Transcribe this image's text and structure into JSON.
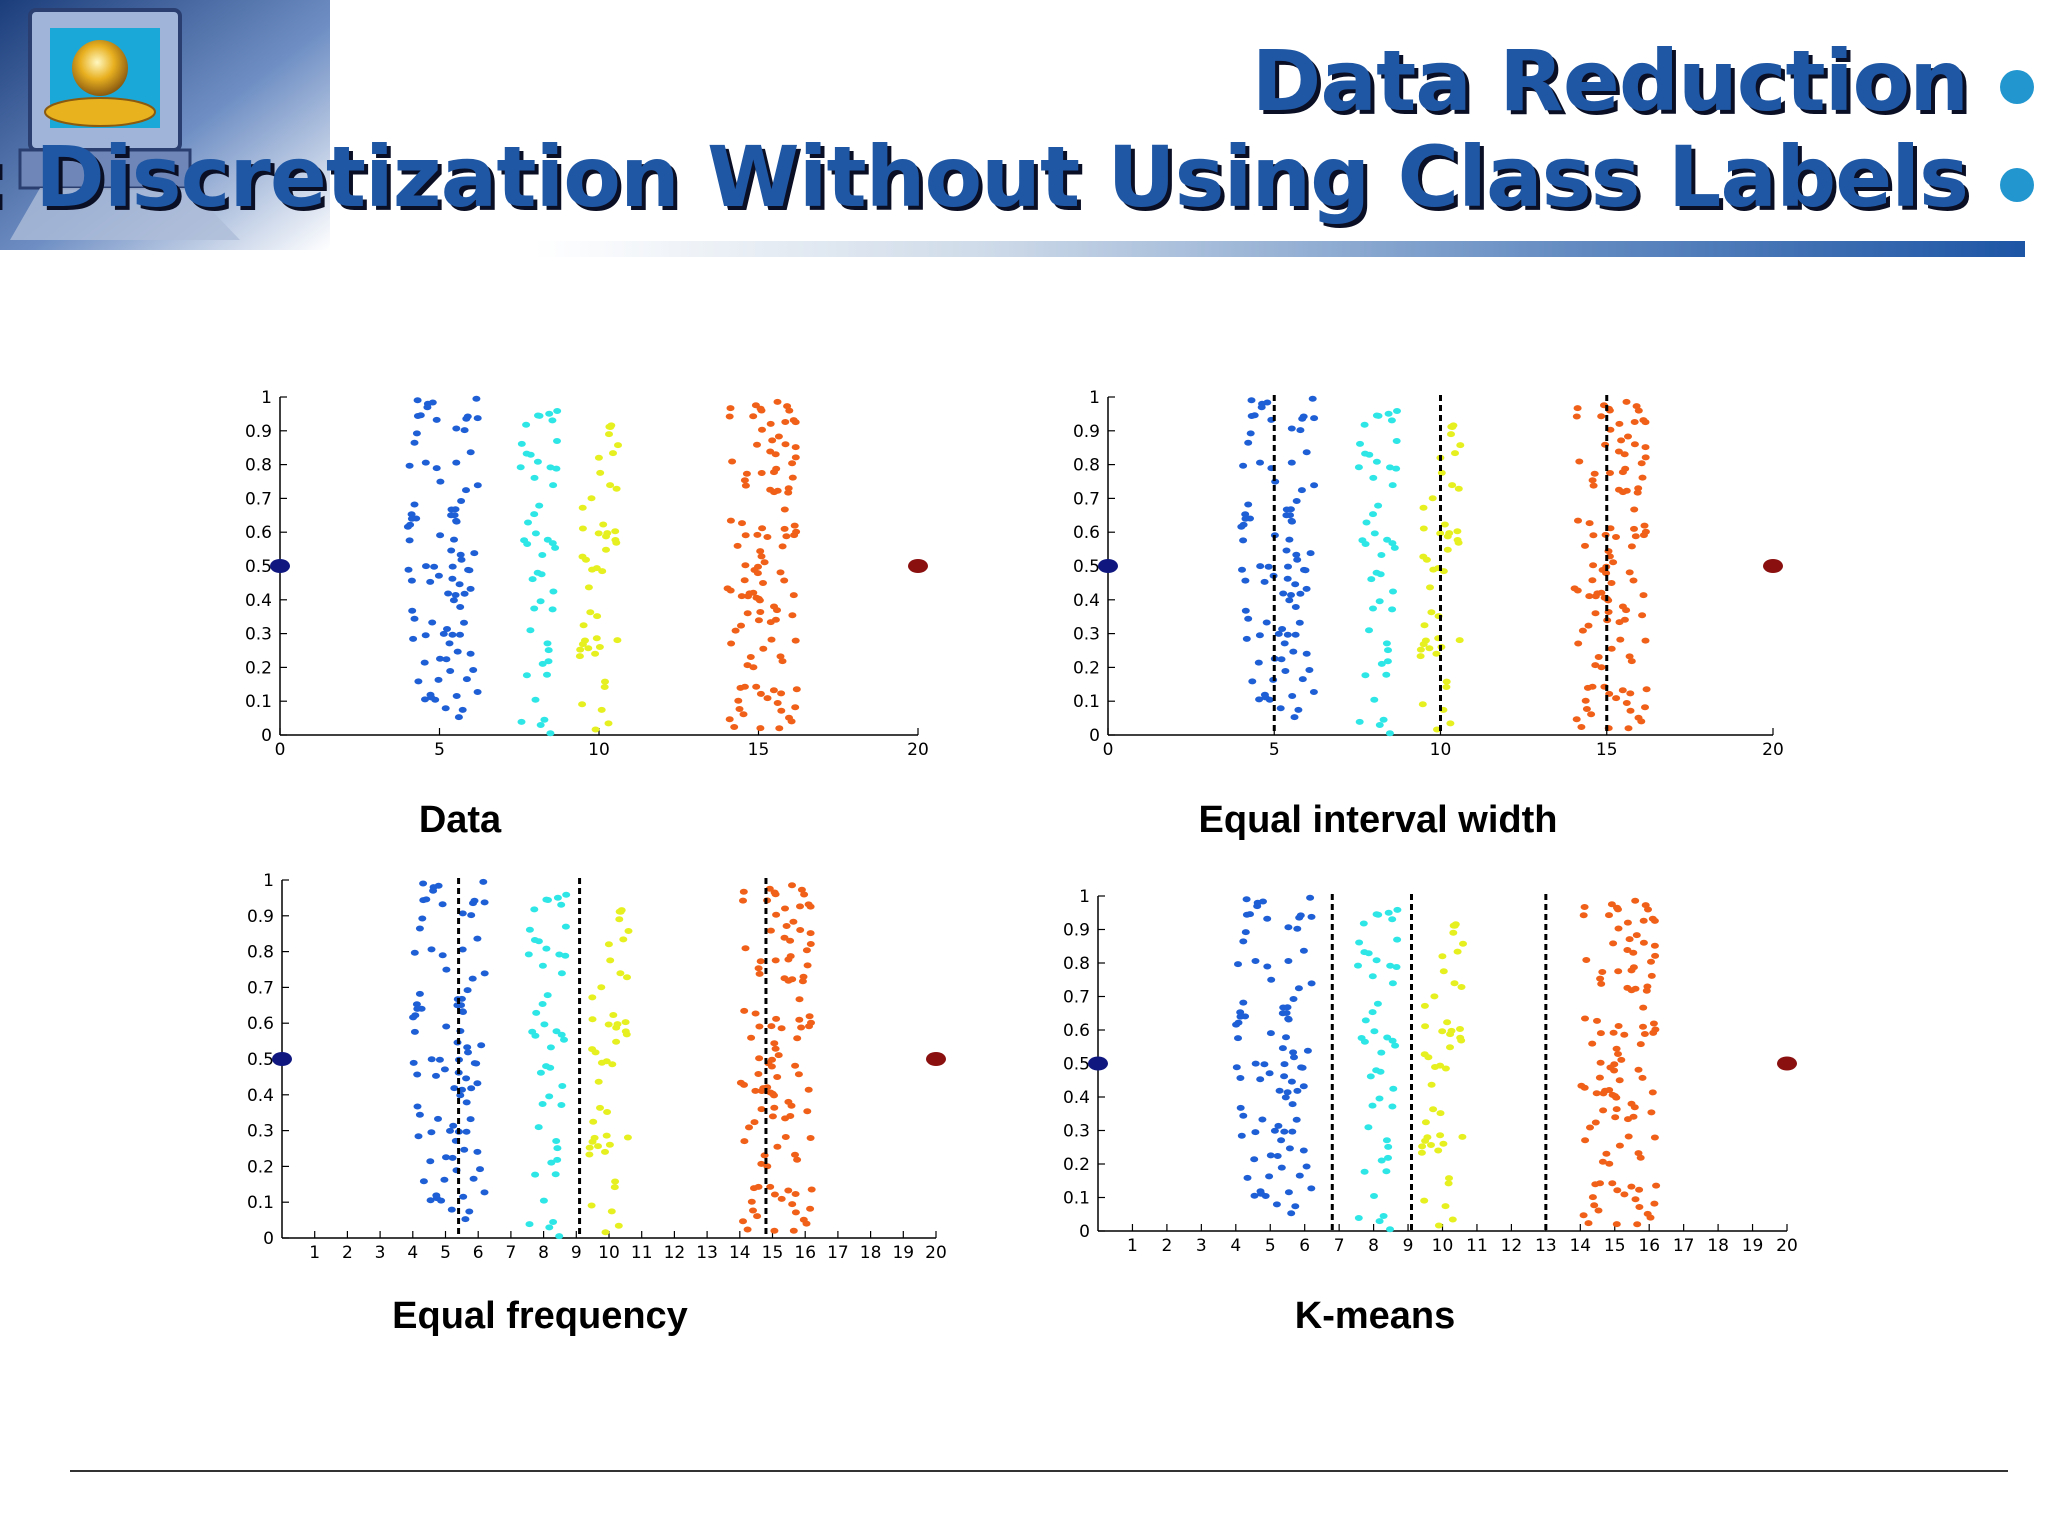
{
  "slide": {
    "title_line1": "Data Reduction",
    "title_line2": ": Discretization Without Using Class Labels",
    "colors": {
      "title": "#1f57a4",
      "title_shadow": "#0b0f25",
      "bullet": "#2297cf"
    }
  },
  "chart_data": [
    {
      "type": "scatter",
      "title": "Data",
      "xlim": [
        0,
        20
      ],
      "ylim": [
        0,
        1
      ],
      "xticks": [
        "0",
        "5",
        "10",
        "15",
        "20"
      ],
      "yticks": [
        "0",
        "0.1",
        "0.2",
        "0.3",
        "0.4",
        "0.5",
        "0.6",
        "0.7",
        "0.8",
        "0.9",
        "1"
      ],
      "series": [
        {
          "name": "cluster 1",
          "color": "#1f5fd6",
          "x_range": [
            4.0,
            6.2
          ],
          "y_range": [
            0.05,
            1.0
          ],
          "n": 90
        },
        {
          "name": "cluster 2",
          "color": "#2ee6e6",
          "x_range": [
            7.5,
            8.8
          ],
          "y_range": [
            0.0,
            0.98
          ],
          "n": 45
        },
        {
          "name": "cluster 3",
          "color": "#e6f020",
          "x_range": [
            9.4,
            10.6
          ],
          "y_range": [
            0.0,
            0.92
          ],
          "n": 45
        },
        {
          "name": "cluster 4",
          "color": "#f06018",
          "x_range": [
            14.0,
            16.2
          ],
          "y_range": [
            0.02,
            1.0
          ],
          "n": 110
        },
        {
          "name": "outlier left",
          "color": "#101880",
          "x": [
            0
          ],
          "y": [
            0.5
          ]
        },
        {
          "name": "outlier right",
          "color": "#8a1010",
          "x": [
            20
          ],
          "y": [
            0.5
          ]
        }
      ],
      "cut_points": []
    },
    {
      "type": "scatter",
      "title": "Equal interval width",
      "xlim": [
        0,
        20
      ],
      "ylim": [
        0,
        1
      ],
      "xticks": [
        "0",
        "5",
        "10",
        "15",
        "20"
      ],
      "yticks": [
        "0",
        "0.1",
        "0.2",
        "0.3",
        "0.4",
        "0.5",
        "0.6",
        "0.7",
        "0.8",
        "0.9",
        "1"
      ],
      "series": [
        {
          "name": "cluster 1",
          "color": "#1f5fd6",
          "x_range": [
            4.0,
            6.2
          ],
          "y_range": [
            0.05,
            1.0
          ],
          "n": 90
        },
        {
          "name": "cluster 2",
          "color": "#2ee6e6",
          "x_range": [
            7.5,
            8.8
          ],
          "y_range": [
            0.0,
            0.98
          ],
          "n": 45
        },
        {
          "name": "cluster 3",
          "color": "#e6f020",
          "x_range": [
            9.4,
            10.6
          ],
          "y_range": [
            0.0,
            0.92
          ],
          "n": 45
        },
        {
          "name": "cluster 4",
          "color": "#f06018",
          "x_range": [
            14.0,
            16.2
          ],
          "y_range": [
            0.02,
            1.0
          ],
          "n": 110
        },
        {
          "name": "outlier left",
          "color": "#101880",
          "x": [
            0
          ],
          "y": [
            0.5
          ]
        },
        {
          "name": "outlier right",
          "color": "#8a1010",
          "x": [
            20
          ],
          "y": [
            0.5
          ]
        }
      ],
      "cut_points": [
        5,
        10,
        15
      ]
    },
    {
      "type": "scatter",
      "title": "Equal frequency",
      "xlim": [
        0,
        20
      ],
      "ylim": [
        0,
        1
      ],
      "xticks": [
        "1",
        "2",
        "3",
        "4",
        "5",
        "6",
        "7",
        "8",
        "9",
        "10",
        "11",
        "12",
        "13",
        "14",
        "15",
        "16",
        "17",
        "18",
        "19",
        "20"
      ],
      "yticks": [
        "0",
        "0.1",
        "0.2",
        "0.3",
        "0.4",
        "0.5",
        "0.6",
        "0.7",
        "0.8",
        "0.9",
        "1"
      ],
      "series": [
        {
          "name": "cluster 1",
          "color": "#1f5fd6",
          "x_range": [
            4.0,
            6.2
          ],
          "y_range": [
            0.05,
            1.0
          ],
          "n": 90
        },
        {
          "name": "cluster 2",
          "color": "#2ee6e6",
          "x_range": [
            7.5,
            8.8
          ],
          "y_range": [
            0.0,
            0.98
          ],
          "n": 45
        },
        {
          "name": "cluster 3",
          "color": "#e6f020",
          "x_range": [
            9.4,
            10.6
          ],
          "y_range": [
            0.0,
            0.92
          ],
          "n": 45
        },
        {
          "name": "cluster 4",
          "color": "#f06018",
          "x_range": [
            14.0,
            16.2
          ],
          "y_range": [
            0.02,
            1.0
          ],
          "n": 110
        },
        {
          "name": "outlier left",
          "color": "#101880",
          "x": [
            0
          ],
          "y": [
            0.5
          ]
        },
        {
          "name": "outlier right",
          "color": "#8a1010",
          "x": [
            20
          ],
          "y": [
            0.5
          ]
        }
      ],
      "cut_points": [
        5.4,
        9.1,
        14.8
      ]
    },
    {
      "type": "scatter",
      "title": "K-means",
      "xlim": [
        0,
        20
      ],
      "ylim": [
        0,
        1
      ],
      "xticks": [
        "1",
        "2",
        "3",
        "4",
        "5",
        "6",
        "7",
        "8",
        "9",
        "10",
        "11",
        "12",
        "13",
        "14",
        "15",
        "16",
        "17",
        "18",
        "19",
        "20"
      ],
      "yticks": [
        "0",
        "0.1",
        "0.2",
        "0.3",
        "0.4",
        "0.5",
        "0.6",
        "0.7",
        "0.8",
        "0.9",
        "1"
      ],
      "series": [
        {
          "name": "cluster 1",
          "color": "#1f5fd6",
          "x_range": [
            4.0,
            6.2
          ],
          "y_range": [
            0.05,
            1.0
          ],
          "n": 90
        },
        {
          "name": "cluster 2",
          "color": "#2ee6e6",
          "x_range": [
            7.5,
            8.8
          ],
          "y_range": [
            0.0,
            0.98
          ],
          "n": 45
        },
        {
          "name": "cluster 3",
          "color": "#e6f020",
          "x_range": [
            9.4,
            10.6
          ],
          "y_range": [
            0.0,
            0.92
          ],
          "n": 45
        },
        {
          "name": "cluster 4",
          "color": "#f06018",
          "x_range": [
            14.0,
            16.2
          ],
          "y_range": [
            0.02,
            1.0
          ],
          "n": 110
        },
        {
          "name": "outlier left",
          "color": "#101880",
          "x": [
            0
          ],
          "y": [
            0.5
          ]
        },
        {
          "name": "outlier right",
          "color": "#8a1010",
          "x": [
            20
          ],
          "y": [
            0.5
          ]
        }
      ],
      "cut_points": [
        6.8,
        9.1,
        13.0
      ]
    }
  ]
}
